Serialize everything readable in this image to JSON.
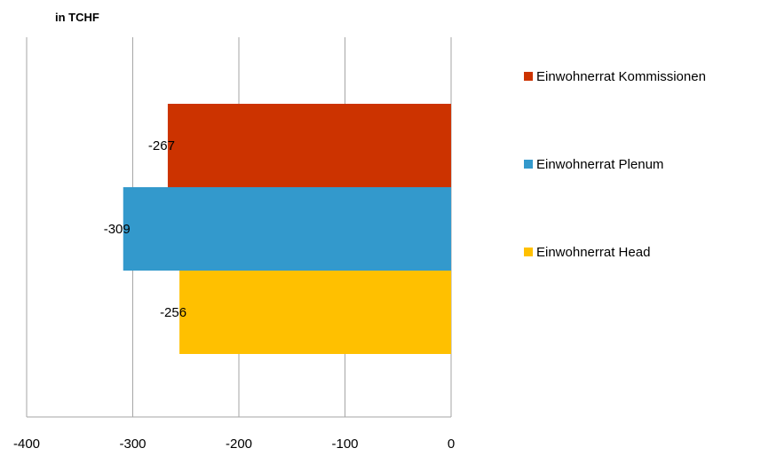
{
  "chart_data": {
    "type": "bar",
    "orientation": "horizontal",
    "unit_label": "in TCHF",
    "xlim": [
      -400,
      0
    ],
    "ticks": [
      -400,
      -300,
      -200,
      -100,
      0
    ],
    "tick_labels": [
      "-400",
      "-300",
      "-200",
      "-100",
      "0"
    ],
    "grid": true,
    "legend_position": "right",
    "series": [
      {
        "name": "Einwohnerrat Kommissionen",
        "value": -267,
        "label": "-267",
        "color": "#cc3300"
      },
      {
        "name": "Einwohnerrat Plenum",
        "value": -309,
        "label": "-309",
        "color": "#3399cc"
      },
      {
        "name": "Einwohnerrat Head",
        "value": -256,
        "label": "-256",
        "color": "#ffc000"
      }
    ]
  }
}
